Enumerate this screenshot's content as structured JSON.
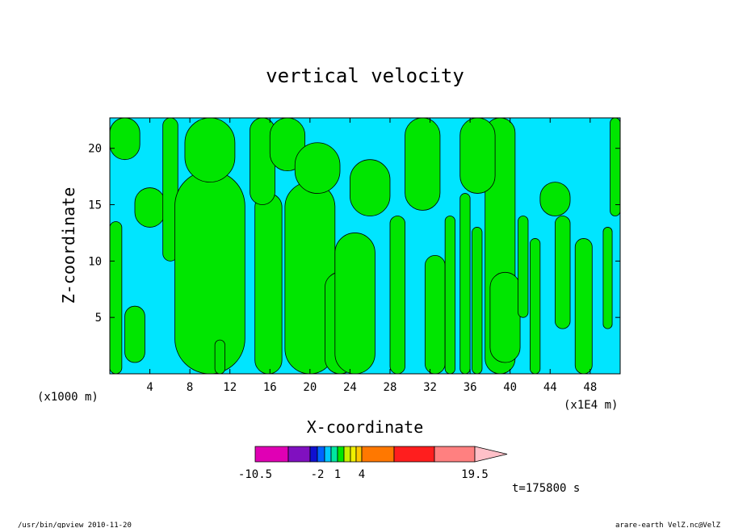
{
  "chart_data": {
    "type": "heatmap",
    "title": "vertical velocity",
    "xlabel": "X-coordinate",
    "ylabel": "Z-coordinate",
    "x_unit_left": "(x1000 m)",
    "x_unit_right": "(x1E4 m)",
    "xlim": [
      0,
      51
    ],
    "ylim": [
      0,
      22.7
    ],
    "x_ticks": [
      4,
      8,
      12,
      16,
      20,
      24,
      28,
      32,
      36,
      40,
      44,
      48
    ],
    "y_ticks": [
      5,
      10,
      15,
      20
    ],
    "field_colors": {
      "negative": "#00e5ff",
      "positive": "#00e600"
    },
    "colorbar": {
      "levels": [
        -10.5,
        -2,
        1,
        4,
        19.5
      ],
      "tick_labels": [
        "-10.5",
        "-2",
        "1",
        "4",
        "19.5"
      ],
      "colors": [
        "#e000b4",
        "#8010c0",
        "#1010d0",
        "#0064ff",
        "#00c8ff",
        "#00e6a0",
        "#00e600",
        "#c8f000",
        "#f0f000",
        "#ffc800",
        "#ff7800",
        "#ff1e1e",
        "#ff8080",
        "#ffc0c8"
      ]
    },
    "time_label": "t=175800 s"
  },
  "footer": {
    "left": "/usr/bin/gpview   2010-11-20",
    "right": "arare-earth_VelZ.nc@VelZ"
  }
}
